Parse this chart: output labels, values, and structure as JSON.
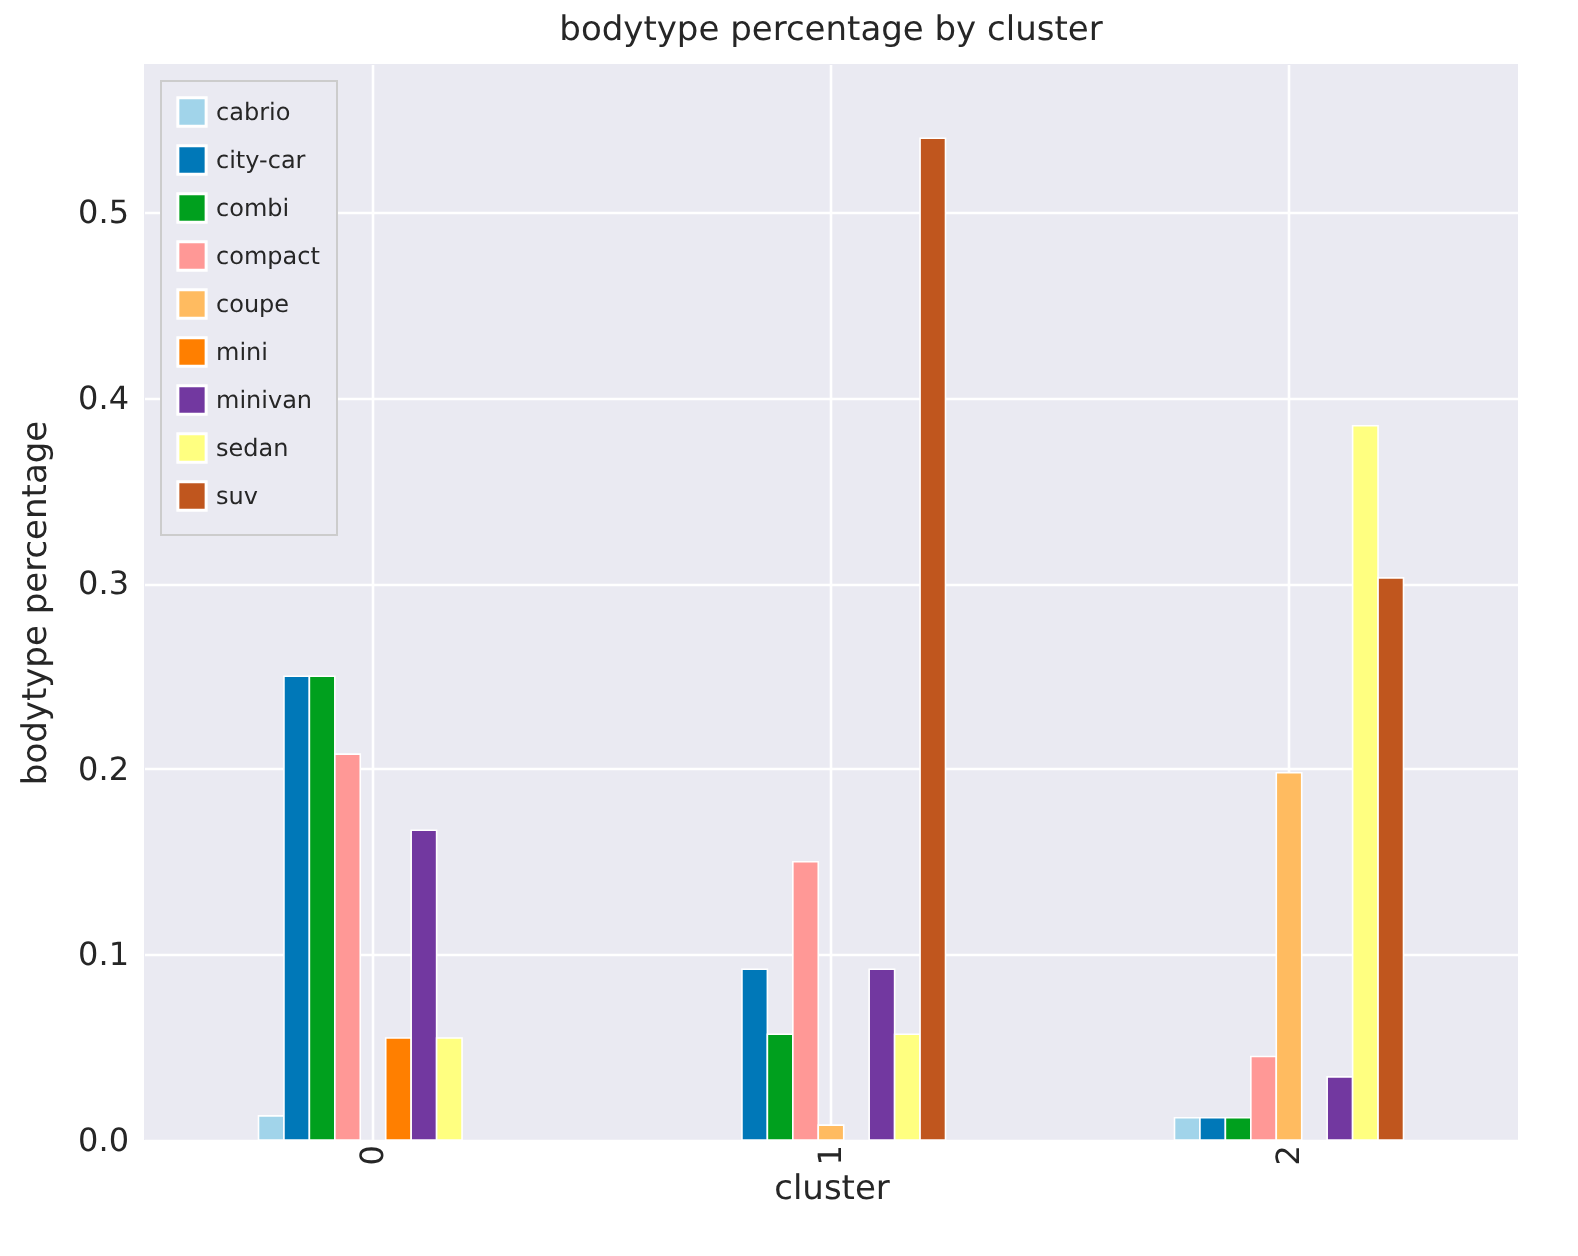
{
  "chart_data": {
    "type": "bar",
    "title": "bodytype percentage by cluster",
    "xlabel": "cluster",
    "ylabel": "bodytype percentage",
    "categories": [
      "0",
      "1",
      "2"
    ],
    "series": [
      {
        "name": "cabrio",
        "color": "#a1d4ea",
        "values": [
          0.013,
          null,
          0.012
        ]
      },
      {
        "name": "city-car",
        "color": "#0078b8",
        "values": [
          0.25,
          0.092,
          0.012
        ]
      },
      {
        "name": "combi",
        "color": "#00a01e",
        "values": [
          0.25,
          0.057,
          0.012
        ]
      },
      {
        "name": "compact",
        "color": "#ff9896",
        "values": [
          0.208,
          0.15,
          0.045
        ]
      },
      {
        "name": "coupe",
        "color": "#ffbb60",
        "values": [
          null,
          0.008,
          0.198
        ]
      },
      {
        "name": "mini",
        "color": "#ff7f00",
        "values": [
          0.055,
          null,
          null
        ]
      },
      {
        "name": "minivan",
        "color": "#7238a0",
        "values": [
          0.167,
          0.092,
          0.034
        ]
      },
      {
        "name": "sedan",
        "color": "#ffff80",
        "values": [
          0.055,
          0.057,
          0.385
        ]
      },
      {
        "name": "suv",
        "color": "#c0561e",
        "values": [
          null,
          0.54,
          0.303
        ]
      }
    ],
    "ylim": [
      0,
      0.58
    ],
    "yticks": [
      {
        "value": 0,
        "label": "0.0"
      },
      0.1,
      0.2,
      0.3,
      0.4,
      0.5
    ],
    "grid": true,
    "legend": "top left"
  }
}
